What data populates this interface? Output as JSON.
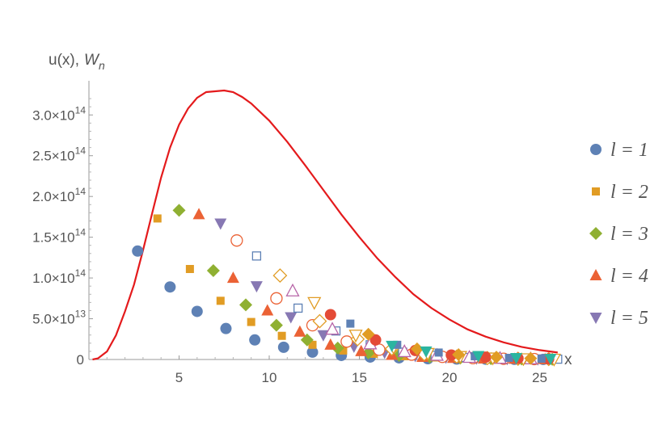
{
  "chart_data": {
    "type": "scatter",
    "title": "",
    "xlabel": "x",
    "ylabel_text": "u(x),",
    "ylabel_symbol": "W",
    "ylabel_subscript": "n",
    "xlim": [
      0,
      26
    ],
    "ylim": [
      0,
      330000000000000.0
    ],
    "x_ticks": [
      5,
      10,
      15,
      20,
      25
    ],
    "y_ticks": [
      {
        "value": 0,
        "mantissa": "0",
        "exponent": ""
      },
      {
        "value": 50000000000000.0,
        "mantissa": "5.0×10",
        "exponent": "13"
      },
      {
        "value": 100000000000000.0,
        "mantissa": "1.0×10",
        "exponent": "14"
      },
      {
        "value": 150000000000000.0,
        "mantissa": "1.5×10",
        "exponent": "14"
      },
      {
        "value": 200000000000000.0,
        "mantissa": "2.0×10",
        "exponent": "14"
      },
      {
        "value": 250000000000000.0,
        "mantissa": "2.5×10",
        "exponent": "14"
      },
      {
        "value": 300000000000000.0,
        "mantissa": "3.0×10",
        "exponent": "14"
      }
    ],
    "grid": false,
    "legend_position": "right",
    "curve": {
      "color": "#e41a1c",
      "points": [
        [
          0.2,
          0.0
        ],
        [
          0.5,
          0.014
        ],
        [
          1,
          0.098
        ],
        [
          1.5,
          0.296
        ],
        [
          2,
          0.59
        ],
        [
          2.5,
          0.92
        ],
        [
          3,
          1.34
        ],
        [
          3.5,
          1.79
        ],
        [
          4,
          2.23
        ],
        [
          4.5,
          2.6
        ],
        [
          5,
          2.88
        ],
        [
          5.5,
          3.08
        ],
        [
          6,
          3.21
        ],
        [
          6.5,
          3.28
        ],
        [
          7,
          3.29
        ],
        [
          7.5,
          3.3
        ],
        [
          8,
          3.28
        ],
        [
          8.5,
          3.22
        ],
        [
          9,
          3.14
        ],
        [
          10,
          2.93
        ],
        [
          11,
          2.67
        ],
        [
          12,
          2.38
        ],
        [
          13,
          2.08
        ],
        [
          14,
          1.78
        ],
        [
          15,
          1.5
        ],
        [
          16,
          1.24
        ],
        [
          17,
          1.01
        ],
        [
          18,
          0.8
        ],
        [
          19,
          0.63
        ],
        [
          20,
          0.49
        ],
        [
          21,
          0.37
        ],
        [
          22,
          0.28
        ],
        [
          23,
          0.21
        ],
        [
          24,
          0.155
        ],
        [
          25,
          0.115
        ],
        [
          26,
          0.085
        ]
      ]
    },
    "series": [
      {
        "name": "l = 1",
        "shape": "circle",
        "color": "#5e81b5",
        "points": [
          [
            2.7,
            1.33
          ],
          [
            4.5,
            0.89
          ],
          [
            6.0,
            0.59
          ],
          [
            7.6,
            0.38
          ],
          [
            9.2,
            0.24
          ],
          [
            10.8,
            0.15
          ],
          [
            12.4,
            0.09
          ],
          [
            14.0,
            0.05
          ],
          [
            15.6,
            0.03
          ],
          [
            17.2,
            0.02
          ],
          [
            18.8,
            0.01
          ],
          [
            20.4,
            0.006
          ],
          [
            22.0,
            0.004
          ],
          [
            23.6,
            0.002
          ],
          [
            25.2,
            0.001
          ]
        ]
      },
      {
        "name": "l = 2",
        "shape": "square",
        "color": "#e19c24",
        "points": [
          [
            3.8,
            1.73
          ],
          [
            5.6,
            1.11
          ],
          [
            7.3,
            0.72
          ],
          [
            9.0,
            0.46
          ],
          [
            10.7,
            0.29
          ],
          [
            12.4,
            0.18
          ],
          [
            14.1,
            0.11
          ],
          [
            15.8,
            0.07
          ],
          [
            17.5,
            0.04
          ],
          [
            19.2,
            0.025
          ],
          [
            20.9,
            0.015
          ],
          [
            22.6,
            0.009
          ],
          [
            24.3,
            0.005
          ],
          [
            26.0,
            0.003
          ]
        ]
      },
      {
        "name": "l = 3",
        "shape": "diamond",
        "color": "#8fb032",
        "points": [
          [
            5.0,
            1.83
          ],
          [
            6.9,
            1.09
          ],
          [
            8.7,
            0.67
          ],
          [
            10.4,
            0.42
          ],
          [
            12.1,
            0.24
          ],
          [
            13.8,
            0.14
          ],
          [
            15.5,
            0.08
          ],
          [
            17.2,
            0.05
          ],
          [
            18.9,
            0.03
          ],
          [
            20.6,
            0.017
          ],
          [
            22.3,
            0.01
          ],
          [
            24.0,
            0.006
          ],
          [
            25.7,
            0.003
          ]
        ]
      },
      {
        "name": "l = 4",
        "shape": "triangle-up",
        "color": "#eb6235",
        "points": [
          [
            6.1,
            1.78
          ],
          [
            8.0,
            1.0
          ],
          [
            9.9,
            0.6
          ],
          [
            11.7,
            0.34
          ],
          [
            13.4,
            0.18
          ],
          [
            15.1,
            0.1
          ],
          [
            16.8,
            0.055
          ],
          [
            18.5,
            0.03
          ],
          [
            20.2,
            0.017
          ],
          [
            21.9,
            0.01
          ],
          [
            23.6,
            0.006
          ],
          [
            25.3,
            0.003
          ]
        ]
      },
      {
        "name": "l = 5",
        "shape": "triangle-down",
        "color": "#8778b3",
        "points": [
          [
            7.3,
            1.67
          ],
          [
            9.3,
            0.9
          ],
          [
            11.2,
            0.52
          ],
          [
            13.0,
            0.3
          ],
          [
            14.7,
            0.16
          ],
          [
            16.4,
            0.085
          ],
          [
            18.1,
            0.045
          ],
          [
            19.8,
            0.025
          ],
          [
            21.5,
            0.014
          ],
          [
            23.2,
            0.008
          ],
          [
            24.9,
            0.004
          ]
        ]
      },
      {
        "name": "",
        "shape": "circle-open",
        "color": "#eb6235",
        "points": [
          [
            8.2,
            1.46
          ],
          [
            10.4,
            0.75
          ],
          [
            12.4,
            0.42
          ],
          [
            14.3,
            0.22
          ],
          [
            16.1,
            0.12
          ],
          [
            17.9,
            0.06
          ],
          [
            19.6,
            0.032
          ],
          [
            21.3,
            0.017
          ],
          [
            23.0,
            0.009
          ],
          [
            24.7,
            0.005
          ]
        ]
      },
      {
        "name": "",
        "shape": "square-open",
        "color": "#5e81b5",
        "points": [
          [
            9.3,
            1.27
          ],
          [
            11.6,
            0.63
          ],
          [
            13.7,
            0.35
          ],
          [
            15.6,
            0.18
          ],
          [
            17.4,
            0.09
          ],
          [
            19.2,
            0.05
          ],
          [
            20.9,
            0.025
          ],
          [
            22.6,
            0.013
          ],
          [
            24.3,
            0.007
          ],
          [
            26.0,
            0.004
          ]
        ]
      },
      {
        "name": "",
        "shape": "diamond-open",
        "color": "#e19c24",
        "points": [
          [
            10.6,
            1.03
          ],
          [
            12.8,
            0.47
          ],
          [
            14.9,
            0.25
          ],
          [
            16.8,
            0.13
          ],
          [
            18.6,
            0.065
          ],
          [
            20.4,
            0.035
          ],
          [
            22.1,
            0.018
          ],
          [
            23.8,
            0.009
          ],
          [
            25.5,
            0.005
          ]
        ]
      },
      {
        "name": "",
        "shape": "triangle-up-open",
        "color": "#b765a8",
        "points": [
          [
            11.3,
            0.84
          ],
          [
            13.5,
            0.37
          ],
          [
            15.6,
            0.19
          ],
          [
            17.5,
            0.095
          ],
          [
            19.3,
            0.05
          ],
          [
            21.1,
            0.025
          ],
          [
            22.8,
            0.013
          ],
          [
            24.5,
            0.007
          ]
        ]
      },
      {
        "name": "",
        "shape": "triangle-down-open",
        "color": "#e19c24",
        "points": [
          [
            12.5,
            0.7
          ],
          [
            14.8,
            0.3
          ],
          [
            16.9,
            0.15
          ],
          [
            18.8,
            0.075
          ],
          [
            20.6,
            0.038
          ],
          [
            22.4,
            0.019
          ],
          [
            24.1,
            0.01
          ],
          [
            25.8,
            0.005
          ]
        ]
      },
      {
        "name": "",
        "shape": "circle",
        "color": "#e44a36",
        "points": [
          [
            13.4,
            0.55
          ],
          [
            15.9,
            0.24
          ],
          [
            18.1,
            0.11
          ],
          [
            20.1,
            0.055
          ],
          [
            22.0,
            0.028
          ],
          [
            23.8,
            0.014
          ],
          [
            25.5,
            0.007
          ]
        ]
      },
      {
        "name": "",
        "shape": "square",
        "color": "#5e81b5",
        "points": [
          [
            14.5,
            0.44
          ],
          [
            17.1,
            0.18
          ],
          [
            19.4,
            0.085
          ],
          [
            21.4,
            0.04
          ],
          [
            23.3,
            0.02
          ],
          [
            25.1,
            0.01
          ]
        ]
      },
      {
        "name": "",
        "shape": "diamond",
        "color": "#e19c24",
        "points": [
          [
            15.5,
            0.31
          ],
          [
            18.2,
            0.13
          ],
          [
            20.5,
            0.06
          ],
          [
            22.6,
            0.029
          ],
          [
            24.5,
            0.014
          ]
        ]
      },
      {
        "name": "",
        "shape": "triangle-down",
        "color": "#2bb5a0",
        "points": [
          [
            16.8,
            0.17
          ],
          [
            18.7,
            0.1
          ],
          [
            21.6,
            0.045
          ],
          [
            23.7,
            0.02
          ],
          [
            25.6,
            0.01
          ]
        ]
      }
    ]
  }
}
